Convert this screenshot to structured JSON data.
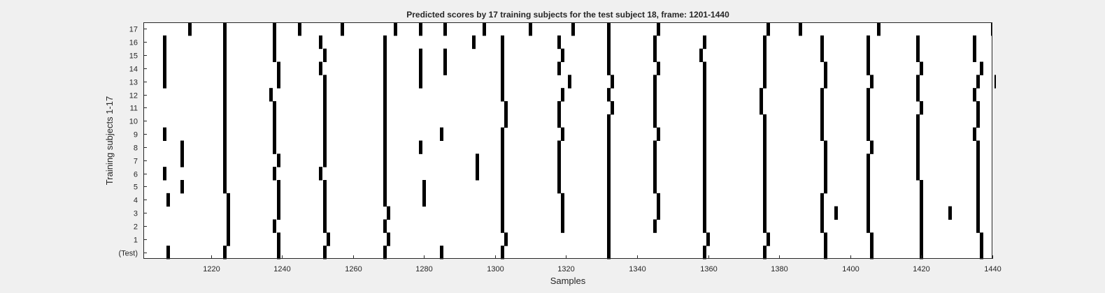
{
  "chart_data": {
    "type": "heatmap",
    "title": "Predicted scores by 17 training subjects for the test subject 18, frame: 1201-1440",
    "xlabel": "Samples",
    "ylabel": "Training subjects 1-17",
    "xlim": [
      1201,
      1440
    ],
    "x_ticks": [
      1220,
      1240,
      1260,
      1280,
      1300,
      1320,
      1340,
      1360,
      1380,
      1400,
      1420,
      1440
    ],
    "y_ticks": [
      "17",
      "16",
      "15",
      "14",
      "13",
      "12",
      "11",
      "10",
      "9",
      "8",
      "7",
      "6",
      "5",
      "4",
      "3",
      "2",
      "1",
      "(Test)"
    ],
    "colors": {
      "background": "#f0f0f0",
      "plot": "#ffffff",
      "mark": "#000000",
      "text": "#262626"
    },
    "grid": false,
    "rows": [
      {
        "label": "17",
        "marks": [
          1214,
          1224,
          1238,
          1245,
          1257,
          1272,
          1279,
          1286,
          1297,
          1310,
          1322,
          1332,
          1346,
          1377,
          1386,
          1408,
          1440
        ]
      },
      {
        "label": "16",
        "marks": [
          1207,
          1224,
          1238,
          1251,
          1269,
          1294,
          1302,
          1318,
          1332,
          1345,
          1359,
          1376,
          1392,
          1405,
          1419,
          1435
        ]
      },
      {
        "label": "15",
        "marks": [
          1207,
          1224,
          1238,
          1252,
          1269,
          1279,
          1286,
          1302,
          1319,
          1332,
          1345,
          1358,
          1376,
          1392,
          1405,
          1419,
          1435
        ]
      },
      {
        "label": "14",
        "marks": [
          1207,
          1224,
          1239,
          1251,
          1269,
          1279,
          1286,
          1302,
          1318,
          1332,
          1346,
          1359,
          1376,
          1393,
          1405,
          1420,
          1437
        ]
      },
      {
        "label": "13",
        "marks": [
          1207,
          1224,
          1239,
          1252,
          1269,
          1279,
          1302,
          1321,
          1333,
          1345,
          1359,
          1376,
          1393,
          1406,
          1419,
          1436,
          1441
        ]
      },
      {
        "label": "12",
        "marks": [
          1224,
          1237,
          1252,
          1269,
          1302,
          1319,
          1332,
          1345,
          1359,
          1375,
          1392,
          1405,
          1419,
          1435
        ]
      },
      {
        "label": "11",
        "marks": [
          1224,
          1238,
          1252,
          1269,
          1303,
          1318,
          1333,
          1345,
          1359,
          1375,
          1392,
          1405,
          1420,
          1436
        ]
      },
      {
        "label": "10",
        "marks": [
          1224,
          1238,
          1252,
          1269,
          1303,
          1318,
          1332,
          1345,
          1359,
          1376,
          1392,
          1405,
          1419,
          1436
        ]
      },
      {
        "label": "9",
        "marks": [
          1207,
          1224,
          1238,
          1252,
          1269,
          1285,
          1302,
          1319,
          1332,
          1346,
          1359,
          1376,
          1392,
          1405,
          1419,
          1435
        ]
      },
      {
        "label": "8",
        "marks": [
          1212,
          1224,
          1238,
          1252,
          1269,
          1279,
          1302,
          1318,
          1332,
          1345,
          1359,
          1376,
          1393,
          1406,
          1419,
          1436
        ]
      },
      {
        "label": "7",
        "marks": [
          1212,
          1224,
          1239,
          1252,
          1269,
          1295,
          1302,
          1318,
          1332,
          1345,
          1359,
          1376,
          1393,
          1405,
          1419,
          1436
        ]
      },
      {
        "label": "6",
        "marks": [
          1207,
          1224,
          1238,
          1251,
          1269,
          1295,
          1302,
          1318,
          1332,
          1345,
          1359,
          1376,
          1393,
          1405,
          1419,
          1436
        ]
      },
      {
        "label": "5",
        "marks": [
          1212,
          1224,
          1239,
          1252,
          1269,
          1280,
          1302,
          1318,
          1332,
          1345,
          1359,
          1376,
          1393,
          1405,
          1420,
          1436
        ]
      },
      {
        "label": "4",
        "marks": [
          1208,
          1225,
          1239,
          1252,
          1269,
          1280,
          1302,
          1319,
          1332,
          1346,
          1359,
          1376,
          1392,
          1405,
          1420,
          1436
        ]
      },
      {
        "label": "3",
        "marks": [
          1225,
          1239,
          1252,
          1270,
          1302,
          1319,
          1332,
          1346,
          1359,
          1376,
          1392,
          1396,
          1405,
          1420,
          1428,
          1436
        ]
      },
      {
        "label": "2",
        "marks": [
          1225,
          1238,
          1252,
          1269,
          1302,
          1319,
          1332,
          1345,
          1359,
          1376,
          1392,
          1405,
          1420,
          1436
        ]
      },
      {
        "label": "1",
        "marks": [
          1225,
          1239,
          1253,
          1270,
          1303,
          1332,
          1360,
          1377,
          1393,
          1406,
          1420,
          1437
        ]
      },
      {
        "label": "(Test)",
        "marks": [
          1208,
          1224,
          1239,
          1252,
          1269,
          1285,
          1302,
          1332,
          1359,
          1376,
          1393,
          1406,
          1420,
          1437
        ]
      }
    ]
  }
}
